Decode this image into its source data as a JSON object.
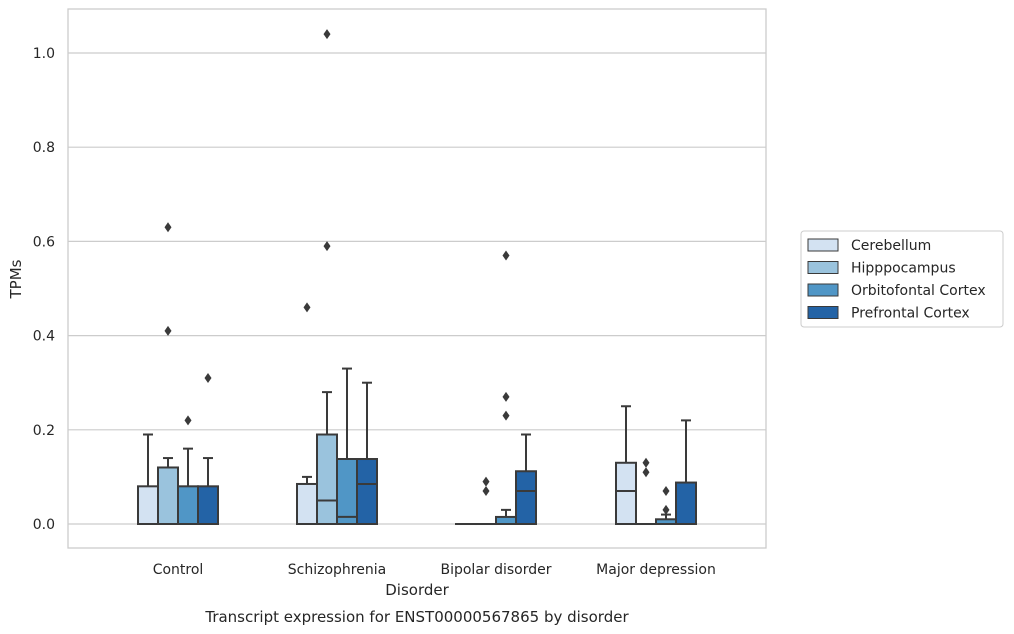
{
  "chart_data": {
    "type": "box",
    "title": "Transcript expression for ENST00000567865 by disorder",
    "xlabel": "Disorder",
    "ylabel": "TPMs",
    "ylim": [
      -0.05,
      1.09
    ],
    "yticks": [
      "0.0",
      "0.2",
      "0.4",
      "0.6",
      "0.8",
      "1.0"
    ],
    "grid": true,
    "legend_position": "right",
    "categories": [
      "Control",
      "Schizophrenia",
      "Bipolar disorder",
      "Major depression"
    ],
    "series": [
      {
        "name": "Cerebellum",
        "color": "#d3e2f2",
        "boxes": [
          {
            "whislo": 0.0,
            "q1": 0.0,
            "med": 0.0,
            "q3": 0.08,
            "whishi": 0.19,
            "fliers": []
          },
          {
            "whislo": 0.0,
            "q1": 0.0,
            "med": 0.0,
            "q3": 0.085,
            "whishi": 0.1,
            "fliers": [
              0.46
            ]
          },
          {
            "whislo": 0.0,
            "q1": 0.0,
            "med": 0.0,
            "q3": 0.0,
            "whishi": 0.0,
            "fliers": []
          },
          {
            "whislo": 0.0,
            "q1": 0.0,
            "med": 0.07,
            "q3": 0.13,
            "whishi": 0.25,
            "fliers": []
          }
        ]
      },
      {
        "name": "Hipppocampus",
        "color": "#9ac3dd",
        "boxes": [
          {
            "whislo": 0.0,
            "q1": 0.0,
            "med": 0.0,
            "q3": 0.12,
            "whishi": 0.14,
            "fliers": [
              0.41,
              0.63
            ]
          },
          {
            "whislo": 0.0,
            "q1": 0.0,
            "med": 0.05,
            "q3": 0.19,
            "whishi": 0.28,
            "fliers": [
              0.59,
              1.04
            ]
          },
          {
            "whislo": 0.0,
            "q1": 0.0,
            "med": 0.0,
            "q3": 0.0,
            "whishi": 0.0,
            "fliers": [
              0.07,
              0.09
            ]
          },
          {
            "whislo": 0.0,
            "q1": 0.0,
            "med": 0.0,
            "q3": 0.0,
            "whishi": 0.0,
            "fliers": [
              0.11,
              0.13
            ]
          }
        ]
      },
      {
        "name": "Orbitofontal Cortex",
        "color": "#5096c6",
        "boxes": [
          {
            "whislo": 0.0,
            "q1": 0.0,
            "med": 0.0,
            "q3": 0.08,
            "whishi": 0.16,
            "fliers": [
              0.22
            ]
          },
          {
            "whislo": 0.0,
            "q1": 0.0,
            "med": 0.015,
            "q3": 0.138,
            "whishi": 0.33,
            "fliers": []
          },
          {
            "whislo": 0.0,
            "q1": 0.0,
            "med": 0.0,
            "q3": 0.015,
            "whishi": 0.03,
            "fliers": [
              0.23,
              0.27,
              0.57
            ]
          },
          {
            "whislo": 0.0,
            "q1": 0.0,
            "med": 0.0,
            "q3": 0.01,
            "whishi": 0.02,
            "fliers": [
              0.03,
              0.07
            ]
          }
        ]
      },
      {
        "name": "Prefrontal Cortex",
        "color": "#2363a6",
        "boxes": [
          {
            "whislo": 0.0,
            "q1": 0.0,
            "med": 0.0,
            "q3": 0.08,
            "whishi": 0.14,
            "fliers": [
              0.31
            ]
          },
          {
            "whislo": 0.0,
            "q1": 0.0,
            "med": 0.085,
            "q3": 0.138,
            "whishi": 0.3,
            "fliers": []
          },
          {
            "whislo": 0.0,
            "q1": 0.0,
            "med": 0.07,
            "q3": 0.112,
            "whishi": 0.19,
            "fliers": []
          },
          {
            "whislo": 0.0,
            "q1": 0.0,
            "med": 0.0,
            "q3": 0.088,
            "whishi": 0.22,
            "fliers": []
          }
        ]
      }
    ]
  }
}
